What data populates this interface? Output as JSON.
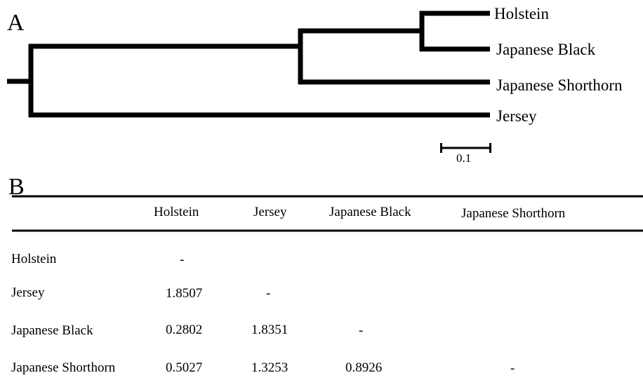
{
  "panel_a": {
    "label": "A",
    "leaves": {
      "holstein": "Holstein",
      "japanese_black": "Japanese Black",
      "japanese_shorthorn": "Japanese Shorthorn",
      "jersey": "Jersey"
    },
    "scale_bar_label": "0.1"
  },
  "panel_b": {
    "label": "B",
    "columns": [
      "Holstein",
      "Jersey",
      "Japanese Black",
      "Japanese Shorthorn"
    ],
    "rows": [
      {
        "name": "Holstein",
        "cells": [
          "-"
        ]
      },
      {
        "name": "Jersey",
        "cells": [
          "1.8507",
          "-"
        ]
      },
      {
        "name": "Japanese Black",
        "cells": [
          "0.2802",
          "1.8351",
          "-"
        ]
      },
      {
        "name": "Japanese Shorthorn",
        "cells": [
          "0.5027",
          "1.3253",
          "0.8926",
          "-"
        ]
      }
    ]
  }
}
